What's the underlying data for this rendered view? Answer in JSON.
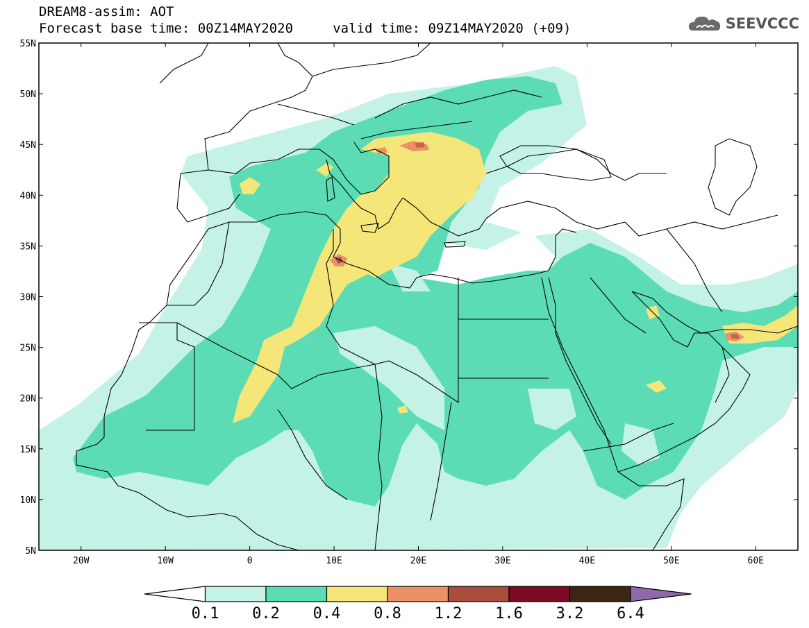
{
  "header": {
    "line1": "DREAM8-assim: AOT",
    "line2": "Forecast base time: 00Z14MAY2020     valid time: 09Z14MAY2020 (+09)"
  },
  "logo": {
    "text": "SEEVCCC",
    "icon": "cloud-icon"
  },
  "map": {
    "lon_range": [
      -25,
      65
    ],
    "lat_range": [
      5,
      55
    ],
    "lat_ticks": [
      "5N",
      "10N",
      "15N",
      "20N",
      "25N",
      "30N",
      "35N",
      "40N",
      "45N",
      "50N",
      "55N"
    ],
    "lon_ticks": [
      "20W",
      "10W",
      "0",
      "10E",
      "20E",
      "30E",
      "40E",
      "50E",
      "60E"
    ]
  },
  "colorbar": {
    "labels": [
      "0.1",
      "0.2",
      "0.4",
      "0.8",
      "1.2",
      "1.6",
      "3.2",
      "6.4"
    ],
    "colors": [
      "#ffffff",
      "#c4f2e7",
      "#5bdcb4",
      "#f5e67a",
      "#ec9066",
      "#a94d3d",
      "#7c0a26",
      "#3c2512",
      "#8e6aa8"
    ]
  }
}
